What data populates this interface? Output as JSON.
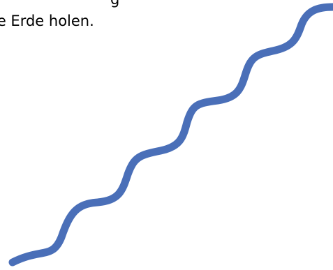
{
  "text": {
    "line_top": "g",
    "line_main": "ie Erde holen."
  },
  "wave": {
    "color": "#4a6fb8",
    "icon": "wavy-line-icon"
  }
}
